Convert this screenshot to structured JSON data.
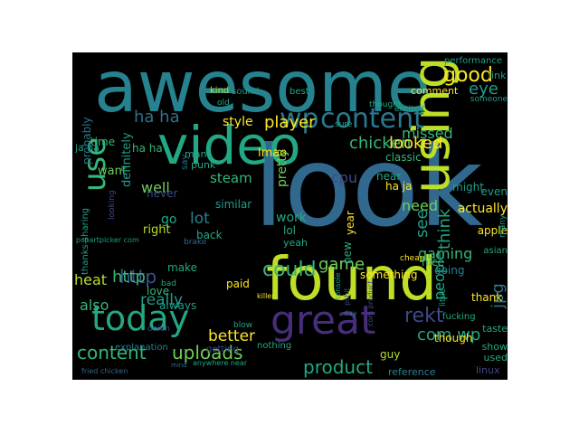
{
  "word_cloud": {
    "words": [
      {
        "text": "look",
        "color": "#31688e"
      },
      {
        "text": "awesome",
        "color": "#26828e"
      },
      {
        "text": "found",
        "color": "#bddf26"
      },
      {
        "text": "video",
        "color": "#22a884"
      },
      {
        "text": "using",
        "color": "#bddf26"
      },
      {
        "text": "great",
        "color": "#472d7b"
      },
      {
        "text": "today",
        "color": "#22a884"
      },
      {
        "text": "content",
        "color": "#2a788e"
      },
      {
        "text": "wp",
        "color": "#2a788e"
      },
      {
        "text": "use",
        "color": "#35b779"
      },
      {
        "text": "ha ha",
        "color": "#2c728e"
      },
      {
        "text": "player",
        "color": "#fde725"
      },
      {
        "text": "chicken",
        "color": "#35b779"
      },
      {
        "text": "good",
        "color": "#fde725"
      },
      {
        "text": "eye",
        "color": "#1f9e89"
      },
      {
        "text": "missed",
        "color": "#35b779"
      },
      {
        "text": "looked",
        "color": "#fde725"
      },
      {
        "text": "http",
        "color": "#3b528b"
      },
      {
        "text": "could",
        "color": "#35b779"
      },
      {
        "text": "game",
        "color": "#6ece58"
      },
      {
        "text": "uploads",
        "color": "#6ece58"
      },
      {
        "text": "content",
        "color": "#35b779"
      },
      {
        "text": "product",
        "color": "#22a884"
      },
      {
        "text": "com wp",
        "color": "#22a884"
      },
      {
        "text": "rekt",
        "color": "#3e4989"
      },
      {
        "text": "better",
        "color": "#fde725"
      },
      {
        "text": "also",
        "color": "#35b779"
      },
      {
        "text": "really",
        "color": "#1f9e89"
      },
      {
        "text": "heat",
        "color": "#b5de2b"
      },
      {
        "text": "http",
        "color": "#35b779"
      },
      {
        "text": "lot",
        "color": "#26828e"
      },
      {
        "text": "well",
        "color": "#6ece58"
      },
      {
        "text": "cpu",
        "color": "#3e4989"
      },
      {
        "text": "steam",
        "color": "#35b779"
      },
      {
        "text": "need",
        "color": "#6ece58"
      },
      {
        "text": "see",
        "color": "#1f9e89"
      },
      {
        "text": "think",
        "color": "#22a884"
      },
      {
        "text": "jpg",
        "color": "#2a788e"
      },
      {
        "text": "gaming",
        "color": "#35b779"
      },
      {
        "text": "people",
        "color": "#22a884"
      },
      {
        "text": "actually",
        "color": "#fde725"
      },
      {
        "text": "lmao",
        "color": "#fde725"
      },
      {
        "text": "style",
        "color": "#fde725"
      },
      {
        "text": "time",
        "color": "#35b779"
      },
      {
        "text": "ha ha",
        "color": "#35b779"
      },
      {
        "text": "ja ha",
        "color": "#1f9e89"
      },
      {
        "text": "want",
        "color": "#6ece58"
      },
      {
        "text": "definitely",
        "color": "#1f9e89"
      },
      {
        "text": "probably",
        "color": "#2a788e"
      },
      {
        "text": "classic",
        "color": "#35b779"
      },
      {
        "text": "near",
        "color": "#22a884"
      },
      {
        "text": "ha ja",
        "color": "#fde725"
      },
      {
        "text": "might",
        "color": "#1f9e89"
      },
      {
        "text": "even",
        "color": "#1f9e89"
      },
      {
        "text": "link",
        "color": "#1f9e89"
      },
      {
        "text": "apple",
        "color": "#fde725"
      },
      {
        "text": "paid",
        "color": "#fde725"
      },
      {
        "text": "work",
        "color": "#22a884"
      },
      {
        "text": "lol",
        "color": "#22a884"
      },
      {
        "text": "yeah",
        "color": "#22a884"
      },
      {
        "text": "new",
        "color": "#22a884"
      },
      {
        "text": "year",
        "color": "#fde725"
      },
      {
        "text": "similar",
        "color": "#1f9e89"
      },
      {
        "text": "pretty",
        "color": "#6ece58"
      },
      {
        "text": "right",
        "color": "#b5de2b"
      },
      {
        "text": "back",
        "color": "#22a884"
      },
      {
        "text": "make",
        "color": "#22a884"
      },
      {
        "text": "never",
        "color": "#3e4989"
      },
      {
        "text": "something",
        "color": "#fde725"
      },
      {
        "text": "going",
        "color": "#26828e"
      },
      {
        "text": "nice",
        "color": "#35b779"
      },
      {
        "text": "thank",
        "color": "#fde725"
      },
      {
        "text": "though",
        "color": "#fde725"
      },
      {
        "text": "guy",
        "color": "#b5de2b"
      },
      {
        "text": "reference",
        "color": "#26828e"
      },
      {
        "text": "linux",
        "color": "#3e4989"
      },
      {
        "text": "used",
        "color": "#22a884"
      },
      {
        "text": "taste",
        "color": "#22a884"
      },
      {
        "text": "show",
        "color": "#22a884"
      },
      {
        "text": "love",
        "color": "#35b779"
      },
      {
        "text": "always",
        "color": "#1f9e89"
      },
      {
        "text": "explanation",
        "color": "#26828e"
      },
      {
        "text": "comment",
        "color": "#fde725"
      },
      {
        "text": "performance",
        "color": "#1f9e89"
      },
      {
        "text": "sound",
        "color": "#1f9e89"
      },
      {
        "text": "kind",
        "color": "#b5de2b"
      },
      {
        "text": "best",
        "color": "#22a884"
      },
      {
        "text": "punk",
        "color": "#22a884"
      },
      {
        "text": "man",
        "color": "#22a884"
      },
      {
        "text": "say",
        "color": "#2a788e"
      },
      {
        "text": "getting",
        "color": "#3e4989"
      },
      {
        "text": "nothing",
        "color": "#22a884"
      },
      {
        "text": "fucking",
        "color": "#22a884"
      },
      {
        "text": "thanks sharing",
        "color": "#1f9e89"
      },
      {
        "text": "looking",
        "color": "#3e4989"
      },
      {
        "text": "pcpartpicker com",
        "color": "#1f9e89"
      },
      {
        "text": "onion",
        "color": "#3e4989"
      },
      {
        "text": "killer",
        "color": "#fde725"
      },
      {
        "text": "console",
        "color": "#1f9e89"
      },
      {
        "text": "pshit",
        "color": "#3e4989"
      },
      {
        "text": "day",
        "color": "#26828e"
      },
      {
        "text": "com product",
        "color": "#3e4989"
      },
      {
        "text": "brake",
        "color": "#31688e"
      },
      {
        "text": "cheap",
        "color": "#fde725"
      },
      {
        "text": "asian",
        "color": "#22a884"
      },
      {
        "text": "many",
        "color": "#22a884"
      },
      {
        "text": "little",
        "color": "#22a884"
      },
      {
        "text": "old",
        "color": "#22a884"
      },
      {
        "text": "sure",
        "color": "#22a884"
      },
      {
        "text": "thought",
        "color": "#22a884"
      },
      {
        "text": "excited",
        "color": "#22a884"
      },
      {
        "text": "someone",
        "color": "#1f9e89"
      },
      {
        "text": "go",
        "color": "#22a884"
      },
      {
        "text": "blow",
        "color": "#22a884"
      },
      {
        "text": "bad",
        "color": "#22a884"
      },
      {
        "text": "fried chicken",
        "color": "#31688e"
      },
      {
        "text": "anywhere near",
        "color": "#22a884"
      },
      {
        "text": "mind",
        "color": "#31688e"
      }
    ]
  }
}
